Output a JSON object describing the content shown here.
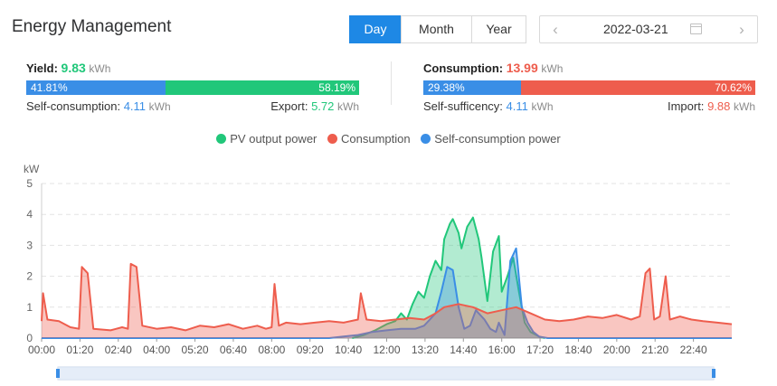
{
  "header": {
    "title": "Energy Management"
  },
  "period_tabs": [
    {
      "label": "Day",
      "active": true
    },
    {
      "label": "Month",
      "active": false
    },
    {
      "label": "Year",
      "active": false
    }
  ],
  "date_picker": {
    "value": "2022-03-21",
    "prev_icon": "chevron-left-icon",
    "next_icon": "chevron-right-icon",
    "calendar_icon": "calendar-icon"
  },
  "yield": {
    "label": "Yield:",
    "value": "9.83",
    "unit": "kWh",
    "self_pct": "41.81%",
    "export_pct": "58.19%",
    "self_fraction": 0.4181,
    "self_label": "Self-consumption:",
    "self_value": "4.11",
    "self_unit": "kWh",
    "export_label": "Export:",
    "export_value": "5.72",
    "export_unit": "kWh"
  },
  "consumption": {
    "label": "Consumption:",
    "value": "13.99",
    "unit": "kWh",
    "self_pct": "29.38%",
    "import_pct": "70.62%",
    "self_fraction": 0.2938,
    "suff_label": "Self-sufficency:",
    "suff_value": "4.11",
    "suff_unit": "kWh",
    "import_label": "Import:",
    "import_value": "9.88",
    "import_unit": "kWh"
  },
  "colors": {
    "pv": "#21c77a",
    "consumption": "#ee5d4d",
    "self": "#3a8ee6",
    "accent": "#1e88e5"
  },
  "chart_data": {
    "type": "line",
    "ylabel": "kW",
    "ylim": [
      0,
      5
    ],
    "yticks": [
      "0",
      "1",
      "2",
      "3",
      "4",
      "5"
    ],
    "xticks": [
      "00:00",
      "01:20",
      "02:40",
      "04:00",
      "05:20",
      "06:40",
      "08:00",
      "09:20",
      "10:40",
      "12:00",
      "13:20",
      "14:40",
      "16:00",
      "17:20",
      "18:40",
      "20:00",
      "21:20",
      "22:40"
    ],
    "x_unit": "hours",
    "grid": true,
    "legend_position": "top",
    "series": [
      {
        "name": "PV output power",
        "color": "#21c77a",
        "points": [
          [
            10.8,
            0
          ],
          [
            11.2,
            0.1
          ],
          [
            11.6,
            0.25
          ],
          [
            12.0,
            0.45
          ],
          [
            12.3,
            0.55
          ],
          [
            12.5,
            0.8
          ],
          [
            12.7,
            0.6
          ],
          [
            12.9,
            1.1
          ],
          [
            13.1,
            1.5
          ],
          [
            13.3,
            1.3
          ],
          [
            13.5,
            2.0
          ],
          [
            13.7,
            2.5
          ],
          [
            13.9,
            2.2
          ],
          [
            14.0,
            3.2
          ],
          [
            14.2,
            3.7
          ],
          [
            14.3,
            3.85
          ],
          [
            14.5,
            3.4
          ],
          [
            14.6,
            2.9
          ],
          [
            14.8,
            3.6
          ],
          [
            15.0,
            3.9
          ],
          [
            15.2,
            3.2
          ],
          [
            15.3,
            2.6
          ],
          [
            15.5,
            1.2
          ],
          [
            15.7,
            2.8
          ],
          [
            15.9,
            3.3
          ],
          [
            16.0,
            1.5
          ],
          [
            16.2,
            2.0
          ],
          [
            16.4,
            2.6
          ],
          [
            16.6,
            1.5
          ],
          [
            16.8,
            0.5
          ],
          [
            17.0,
            0.2
          ],
          [
            17.3,
            0.05
          ],
          [
            17.5,
            0
          ]
        ]
      },
      {
        "name": "Self-consumption power",
        "color": "#3a8ee6",
        "points": [
          [
            0,
            0
          ],
          [
            10.0,
            0
          ],
          [
            10.5,
            0.05
          ],
          [
            11.0,
            0.1
          ],
          [
            11.5,
            0.2
          ],
          [
            12.0,
            0.25
          ],
          [
            12.5,
            0.3
          ],
          [
            13.0,
            0.3
          ],
          [
            13.3,
            0.4
          ],
          [
            13.5,
            0.6
          ],
          [
            13.7,
            0.8
          ],
          [
            13.9,
            1.5
          ],
          [
            14.1,
            2.3
          ],
          [
            14.3,
            2.2
          ],
          [
            14.5,
            1.0
          ],
          [
            14.7,
            0.3
          ],
          [
            14.9,
            0.4
          ],
          [
            15.1,
            0.9
          ],
          [
            15.4,
            0.6
          ],
          [
            15.6,
            0.3
          ],
          [
            15.8,
            0.2
          ],
          [
            15.9,
            0.5
          ],
          [
            16.1,
            0.1
          ],
          [
            16.3,
            2.5
          ],
          [
            16.5,
            2.9
          ],
          [
            16.7,
            1.0
          ],
          [
            16.9,
            0.5
          ],
          [
            17.1,
            0.2
          ],
          [
            17.3,
            0.05
          ],
          [
            17.6,
            0
          ],
          [
            24,
            0
          ]
        ]
      },
      {
        "name": "Consumption",
        "color": "#ee5d4d",
        "points": [
          [
            0,
            0.55
          ],
          [
            0.05,
            1.45
          ],
          [
            0.2,
            0.6
          ],
          [
            0.6,
            0.55
          ],
          [
            1.0,
            0.35
          ],
          [
            1.3,
            0.3
          ],
          [
            1.4,
            2.3
          ],
          [
            1.6,
            2.1
          ],
          [
            1.8,
            0.3
          ],
          [
            2.4,
            0.25
          ],
          [
            2.8,
            0.35
          ],
          [
            3.0,
            0.3
          ],
          [
            3.1,
            2.4
          ],
          [
            3.3,
            2.3
          ],
          [
            3.5,
            0.4
          ],
          [
            4.0,
            0.3
          ],
          [
            4.5,
            0.35
          ],
          [
            5.0,
            0.25
          ],
          [
            5.5,
            0.4
          ],
          [
            6.0,
            0.35
          ],
          [
            6.5,
            0.45
          ],
          [
            7.0,
            0.3
          ],
          [
            7.5,
            0.4
          ],
          [
            7.8,
            0.3
          ],
          [
            8.0,
            0.35
          ],
          [
            8.1,
            1.75
          ],
          [
            8.25,
            0.4
          ],
          [
            8.5,
            0.5
          ],
          [
            9.0,
            0.45
          ],
          [
            9.5,
            0.5
          ],
          [
            10.0,
            0.55
          ],
          [
            10.5,
            0.5
          ],
          [
            11.0,
            0.6
          ],
          [
            11.1,
            1.45
          ],
          [
            11.3,
            0.6
          ],
          [
            11.8,
            0.55
          ],
          [
            12.3,
            0.6
          ],
          [
            12.8,
            0.65
          ],
          [
            13.3,
            0.6
          ],
          [
            13.7,
            0.8
          ],
          [
            14.0,
            1.0
          ],
          [
            14.5,
            1.1
          ],
          [
            15.0,
            1.0
          ],
          [
            15.5,
            0.8
          ],
          [
            16.0,
            0.9
          ],
          [
            16.5,
            1.0
          ],
          [
            17.0,
            0.8
          ],
          [
            17.5,
            0.6
          ],
          [
            18.0,
            0.55
          ],
          [
            18.5,
            0.6
          ],
          [
            19.0,
            0.7
          ],
          [
            19.5,
            0.65
          ],
          [
            20.0,
            0.75
          ],
          [
            20.5,
            0.6
          ],
          [
            20.8,
            0.7
          ],
          [
            21.0,
            2.1
          ],
          [
            21.15,
            2.25
          ],
          [
            21.3,
            0.6
          ],
          [
            21.5,
            0.7
          ],
          [
            21.7,
            2.0
          ],
          [
            21.85,
            0.6
          ],
          [
            22.2,
            0.7
          ],
          [
            22.6,
            0.6
          ],
          [
            23.0,
            0.55
          ],
          [
            23.5,
            0.5
          ],
          [
            24,
            0.45
          ]
        ]
      }
    ]
  }
}
